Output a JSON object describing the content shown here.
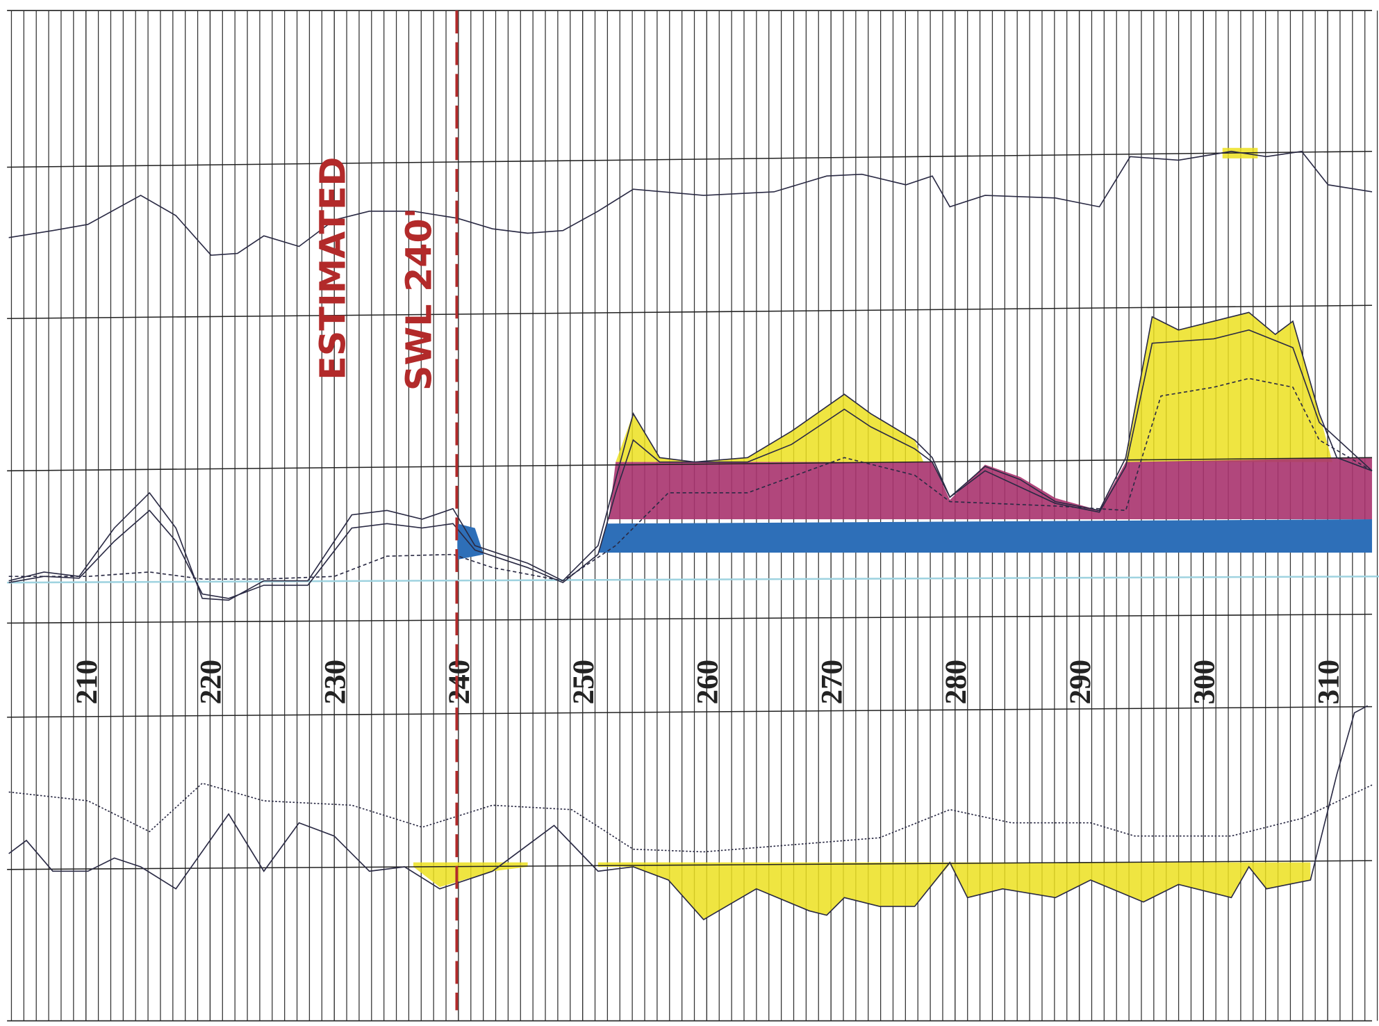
{
  "chart_data": {
    "type": "well-log",
    "annotations": [
      "ESTIMATED",
      "SWL 240'"
    ],
    "xlim": [
      204,
      314
    ],
    "xticks": [
      210,
      220,
      230,
      240,
      250,
      260,
      270,
      280,
      290,
      300,
      310
    ]
  }
}
